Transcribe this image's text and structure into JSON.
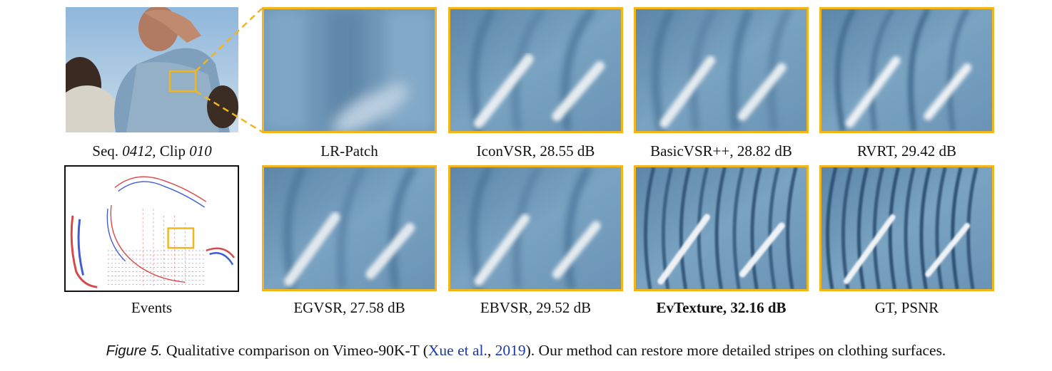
{
  "figure": {
    "label": "Figure 5.",
    "caption_before": " Qualitative comparison on Vimeo-90K-T (",
    "cite_author": "Xue et al.",
    "cite_sep": ", ",
    "cite_year": "2019",
    "caption_after": "). Our method can restore more detailed stripes on clothing surfaces."
  },
  "source": {
    "seq_prefix": "Seq. ",
    "seq_id": "0412",
    "clip_prefix": ", Clip ",
    "clip_id": "010"
  },
  "events_label": "Events",
  "panels_top": [
    {
      "label": "LR-Patch"
    },
    {
      "label": "IconVSR, 28.55 dB"
    },
    {
      "label": "BasicVSR++, 28.82 dB"
    },
    {
      "label": "RVRT, 29.42 dB"
    }
  ],
  "panels_bottom": [
    {
      "label": "EGVSR, 27.58 dB"
    },
    {
      "label": "EBVSR, 29.52 dB"
    },
    {
      "label": "EvTexture, 32.16 dB"
    },
    {
      "label": "GT, PSNR"
    }
  ],
  "colors": {
    "highlight": "#f2b51c",
    "link": "#1b3aa8",
    "event_positive": "#d12a2a",
    "event_negative": "#1f3fd0"
  }
}
